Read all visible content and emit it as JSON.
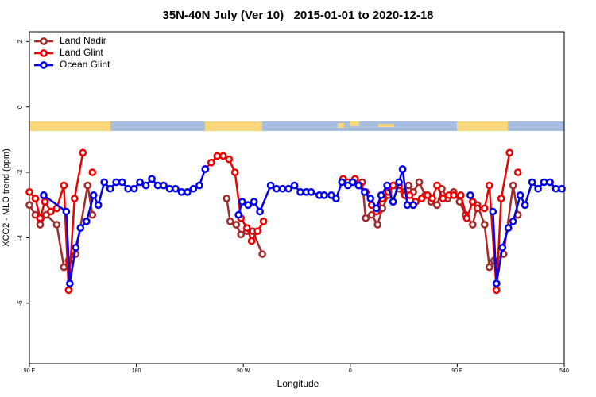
{
  "chart_data": {
    "type": "line",
    "title": "35N-40N July (Ver 10)   2015-01-01 to 2020-12-18",
    "x_label": "Longitude",
    "y_label": "XCO2 - MLO trend (ppm)",
    "xlim": [
      90,
      540
    ],
    "xticks": [
      {
        "value": 90,
        "label": "90 E"
      },
      180,
      {
        "value": 270,
        "label": "90 W"
      },
      {
        "value": 360,
        "label": "0"
      },
      {
        "value": 450,
        "label": "90 E"
      },
      540
    ],
    "ylim": [
      -7.85,
      2.3
    ],
    "yticks": [
      2,
      0,
      -2,
      -4,
      -6
    ],
    "legend": "top-left",
    "series": [
      {
        "name": "Land Nadir",
        "color": "#a52a2a",
        "x": [
          90,
          95,
          99,
          104,
          113,
          119,
          123,
          129,
          139,
          143,
          null,
          256,
          259,
          264,
          268,
          273,
          278,
          286,
          null,
          370,
          373,
          378,
          383,
          387,
          392,
          396,
          401,
          405,
          409,
          413,
          418,
          423,
          428,
          433,
          437,
          442,
          447,
          452,
          457,
          463,
          467,
          473,
          477,
          481,
          489,
          497,
          501
        ],
        "values": [
          -3.0,
          -3.3,
          -3.6,
          -3.3,
          -3.6,
          -4.9,
          -4.7,
          -4.5,
          -2.4,
          -3.3,
          null,
          -2.8,
          -3.5,
          -3.6,
          -3.9,
          -3.8,
          -3.8,
          -4.5,
          null,
          -2.3,
          -3.4,
          -3.3,
          -3.6,
          -3.1,
          -2.7,
          -2.4,
          -2.5,
          -2.6,
          -2.4,
          -2.6,
          -2.3,
          -2.7,
          -2.9,
          -3.0,
          -2.5,
          -2.8,
          -2.6,
          -2.9,
          -3.3,
          -3.6,
          -3.0,
          -3.6,
          -4.9,
          -4.7,
          -4.5,
          -2.4,
          -3.3
        ]
      },
      {
        "name": "Land Glint",
        "color": "#ee0000",
        "x": [
          90,
          95,
          99,
          103,
          108,
          113,
          119,
          123,
          128,
          135,
          null,
          143,
          null,
          238,
          243,
          248,
          253,
          258,
          263,
          268,
          273,
          277,
          282,
          287,
          null,
          354,
          358,
          364,
          368,
          373,
          378,
          382,
          387,
          392,
          396,
          401,
          406,
          410,
          415,
          420,
          425,
          429,
          433,
          438,
          443,
          447,
          453,
          458,
          463,
          467,
          473,
          477,
          483,
          487,
          494,
          null,
          501
        ],
        "values": [
          -2.6,
          -2.8,
          -3.4,
          -2.9,
          -3.2,
          -3.1,
          -2.4,
          -5.6,
          -2.8,
          -1.4,
          null,
          -2.0,
          null,
          -1.9,
          -1.7,
          -1.5,
          -1.5,
          -1.6,
          -2.0,
          -3.4,
          -3.7,
          -4.1,
          -3.8,
          -3.5,
          null,
          -2.2,
          -2.3,
          -2.2,
          -2.4,
          -2.6,
          -3.0,
          -3.2,
          -2.8,
          -2.6,
          -2.4,
          -2.4,
          -2.7,
          -2.7,
          -2.9,
          -2.8,
          -2.7,
          -2.8,
          -2.4,
          -2.8,
          -2.7,
          -2.7,
          -2.7,
          -3.4,
          -2.9,
          -3.1,
          -3.1,
          -2.4,
          -5.6,
          -2.8,
          -1.4,
          null,
          -2.0
        ]
      },
      {
        "name": "Ocean Glint",
        "color": "#0000ee",
        "x": [
          102,
          121,
          124,
          129,
          133,
          138,
          144,
          148,
          153,
          158,
          163,
          168,
          173,
          178,
          183,
          188,
          193,
          198,
          203,
          208,
          213,
          218,
          223,
          228,
          233,
          238,
          null,
          266,
          269,
          274,
          279,
          284,
          293,
          298,
          303,
          308,
          313,
          318,
          323,
          327,
          334,
          338,
          344,
          348,
          353,
          358,
          362,
          367,
          372,
          377,
          382,
          386,
          391,
          396,
          401,
          404,
          408,
          413,
          null,
          461,
          null,
          480,
          483,
          488,
          493,
          497,
          503,
          507,
          513,
          518,
          523,
          528,
          533,
          538
        ],
        "values": [
          -2.7,
          -3.2,
          -5.4,
          -4.3,
          -3.7,
          -3.5,
          -2.7,
          -3.0,
          -2.3,
          -2.5,
          -2.3,
          -2.3,
          -2.5,
          -2.5,
          -2.3,
          -2.4,
          -2.2,
          -2.4,
          -2.4,
          -2.5,
          -2.5,
          -2.6,
          -2.6,
          -2.5,
          -2.4,
          -1.9,
          null,
          -3.3,
          -2.9,
          -3.0,
          -2.9,
          -3.2,
          -2.4,
          -2.5,
          -2.5,
          -2.5,
          -2.4,
          -2.6,
          -2.6,
          -2.6,
          -2.7,
          -2.7,
          -2.7,
          -2.8,
          -2.3,
          -2.4,
          -2.3,
          -2.4,
          -2.6,
          -2.8,
          -3.1,
          -2.7,
          -2.4,
          -2.9,
          -2.3,
          -1.9,
          -3.0,
          -3.0,
          null,
          -2.7,
          null,
          -3.2,
          -5.4,
          -4.3,
          -3.7,
          -3.5,
          -2.7,
          -3.0,
          -2.3,
          -2.5,
          -2.3,
          -2.3,
          -2.5,
          -2.5
        ]
      }
    ]
  }
}
